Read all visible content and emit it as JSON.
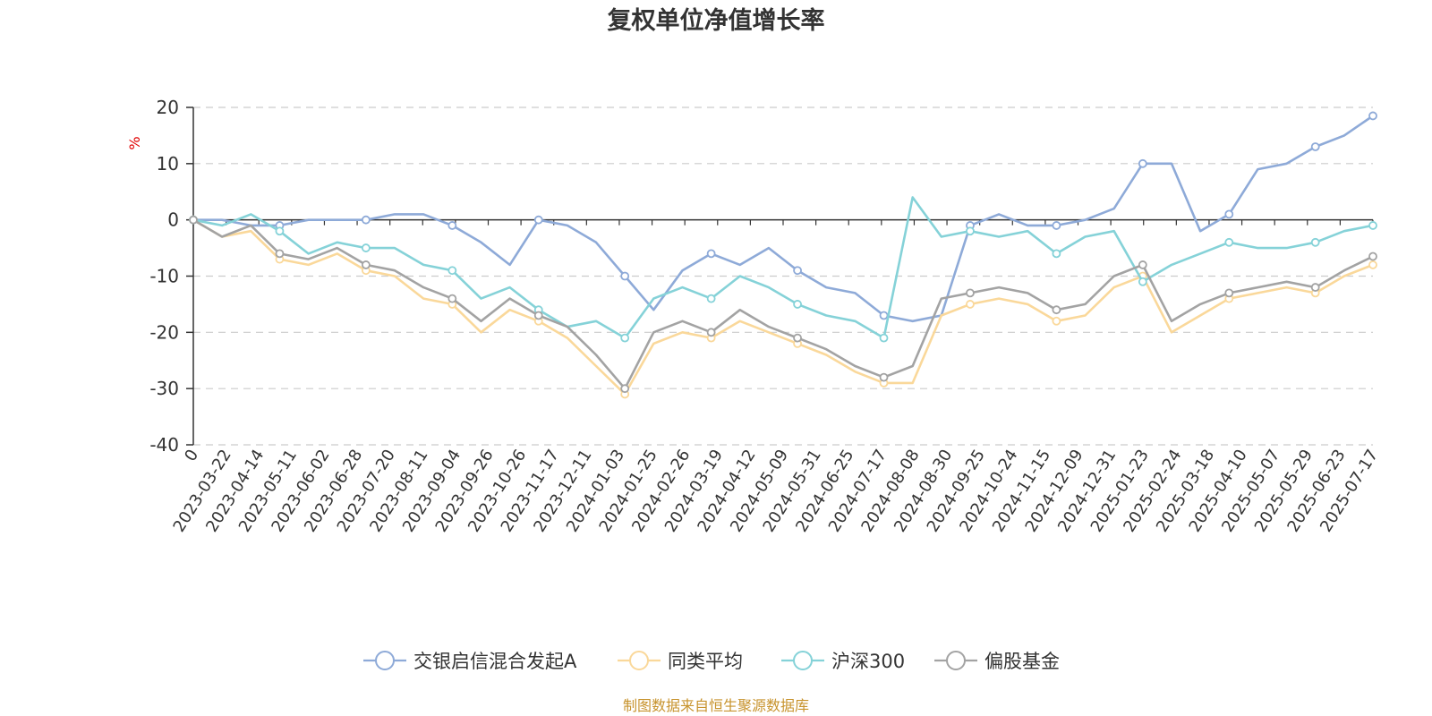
{
  "chart_data": {
    "type": "line",
    "title": "复权单位净值增长率",
    "ylabel": "%",
    "ylim": [
      -40,
      20
    ],
    "yticks": [
      20,
      10,
      0,
      -10,
      -20,
      -30,
      -40
    ],
    "grid": true,
    "legend_position": "bottom",
    "source": "制图数据来自恒生聚源数据库",
    "x_tick_labels": [
      "0",
      "2023-03-22",
      "2023-04-14",
      "2023-05-11",
      "2023-06-02",
      "2023-06-28",
      "2023-07-20",
      "2023-08-11",
      "2023-09-04",
      "2023-09-26",
      "2023-10-26",
      "2023-11-17",
      "2023-12-11",
      "2024-01-03",
      "2024-01-25",
      "2024-02-26",
      "2024-03-19",
      "2024-04-12",
      "2024-05-09",
      "2024-05-31",
      "2024-06-25",
      "2024-07-17",
      "2024-08-08",
      "2024-08-30",
      "2024-09-25",
      "2024-10-24",
      "2024-11-15",
      "2024-12-09",
      "2024-12-31",
      "2025-01-23",
      "2025-02-24",
      "2025-03-18",
      "2025-04-10",
      "2025-05-07",
      "2025-05-29",
      "2025-06-23",
      "2025-07-17"
    ],
    "series": [
      {
        "name": "交银启信混合发起A",
        "color": "#8eaad8",
        "values": [
          0,
          0,
          -1,
          -1,
          0,
          0,
          0,
          1,
          1,
          -1,
          -4,
          -8,
          0,
          -1,
          -4,
          -10,
          -16,
          -9,
          -6,
          -8,
          -5,
          -9,
          -12,
          -13,
          -17,
          -18,
          -17,
          -1,
          1,
          -1,
          -1,
          0,
          2,
          10,
          10,
          -2,
          1,
          9,
          10,
          13,
          15,
          18.5
        ]
      },
      {
        "name": "同类平均",
        "color": "#fad89a",
        "values": [
          0,
          -3,
          -2,
          -7,
          -8,
          -6,
          -9,
          -10,
          -14,
          -15,
          -20,
          -16,
          -18,
          -21,
          -26,
          -31,
          -22,
          -20,
          -21,
          -18,
          -20,
          -22,
          -24,
          -27,
          -29,
          -29,
          -17,
          -15,
          -14,
          -15,
          -18,
          -17,
          -12,
          -10,
          -20,
          -17,
          -14,
          -13,
          -12,
          -13,
          -10,
          -8
        ]
      },
      {
        "name": "沪深300",
        "color": "#85d2d8",
        "values": [
          0,
          -1,
          1,
          -2,
          -6,
          -4,
          -5,
          -5,
          -8,
          -9,
          -14,
          -12,
          -16,
          -19,
          -18,
          -21,
          -14,
          -12,
          -14,
          -10,
          -12,
          -15,
          -17,
          -18,
          -21,
          4,
          -3,
          -2,
          -3,
          -2,
          -6,
          -3,
          -2,
          -11,
          -8,
          -6,
          -4,
          -5,
          -5,
          -4,
          -2,
          -1
        ]
      },
      {
        "name": "偏股基金",
        "color": "#a3a3a3",
        "values": [
          0,
          -3,
          -1,
          -6,
          -7,
          -5,
          -8,
          -9,
          -12,
          -14,
          -18,
          -14,
          -17,
          -19,
          -24,
          -30,
          -20,
          -18,
          -20,
          -16,
          -19,
          -21,
          -23,
          -26,
          -28,
          -26,
          -14,
          -13,
          -12,
          -13,
          -16,
          -15,
          -10,
          -8,
          -18,
          -15,
          -13,
          -12,
          -11,
          -12,
          -9,
          -6.5
        ]
      }
    ]
  }
}
